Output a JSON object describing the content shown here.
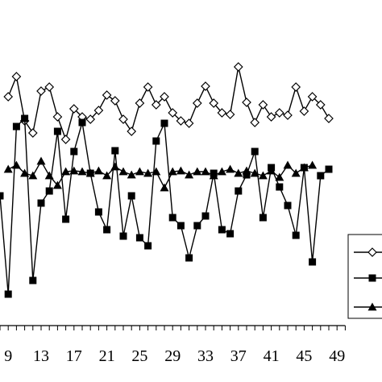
{
  "chart_data": {
    "type": "line",
    "title": "",
    "xlabel": "",
    "ylabel": "",
    "x_start": 8,
    "x_end": 50,
    "x_tick_labels": [
      "9",
      "13",
      "17",
      "21",
      "25",
      "29",
      "33",
      "37",
      "41",
      "45",
      "49"
    ],
    "x_tick_values": [
      9,
      13,
      17,
      21,
      25,
      29,
      33,
      37,
      41,
      45,
      49
    ],
    "grid": false,
    "legend_position": "right",
    "series": [
      {
        "marker": "diamond-open",
        "values": [
          120,
          95,
          150,
          165,
          113,
          108,
          145,
          173,
          135,
          145,
          148,
          137,
          118,
          125,
          148,
          163,
          128,
          108,
          130,
          120,
          140,
          150,
          153,
          128,
          107,
          128,
          140,
          142,
          83,
          127,
          152,
          130,
          145,
          140,
          143,
          108,
          138,
          120,
          130,
          147
        ]
      },
      {
        "marker": "square-filled",
        "values": [
          243,
          365,
          157,
          147,
          348,
          252,
          237,
          163,
          272,
          188,
          152,
          215,
          263,
          285,
          187,
          293,
          243,
          295,
          305,
          175,
          153,
          270,
          280,
          320,
          280,
          268,
          215,
          285,
          290,
          237,
          217,
          188,
          270,
          208,
          232,
          255,
          292,
          208,
          325,
          218,
          210
        ]
      },
      {
        "marker": "triangle-filled",
        "values": [
          210,
          205,
          215,
          218,
          200,
          218,
          230,
          213,
          212,
          213,
          215,
          212,
          218,
          207,
          213,
          217,
          213,
          215,
          213,
          233,
          213,
          212,
          217,
          213,
          213,
          218,
          213,
          210,
          215,
          212,
          215,
          218,
          212,
          220,
          205,
          215,
          208,
          205
        ]
      }
    ]
  }
}
